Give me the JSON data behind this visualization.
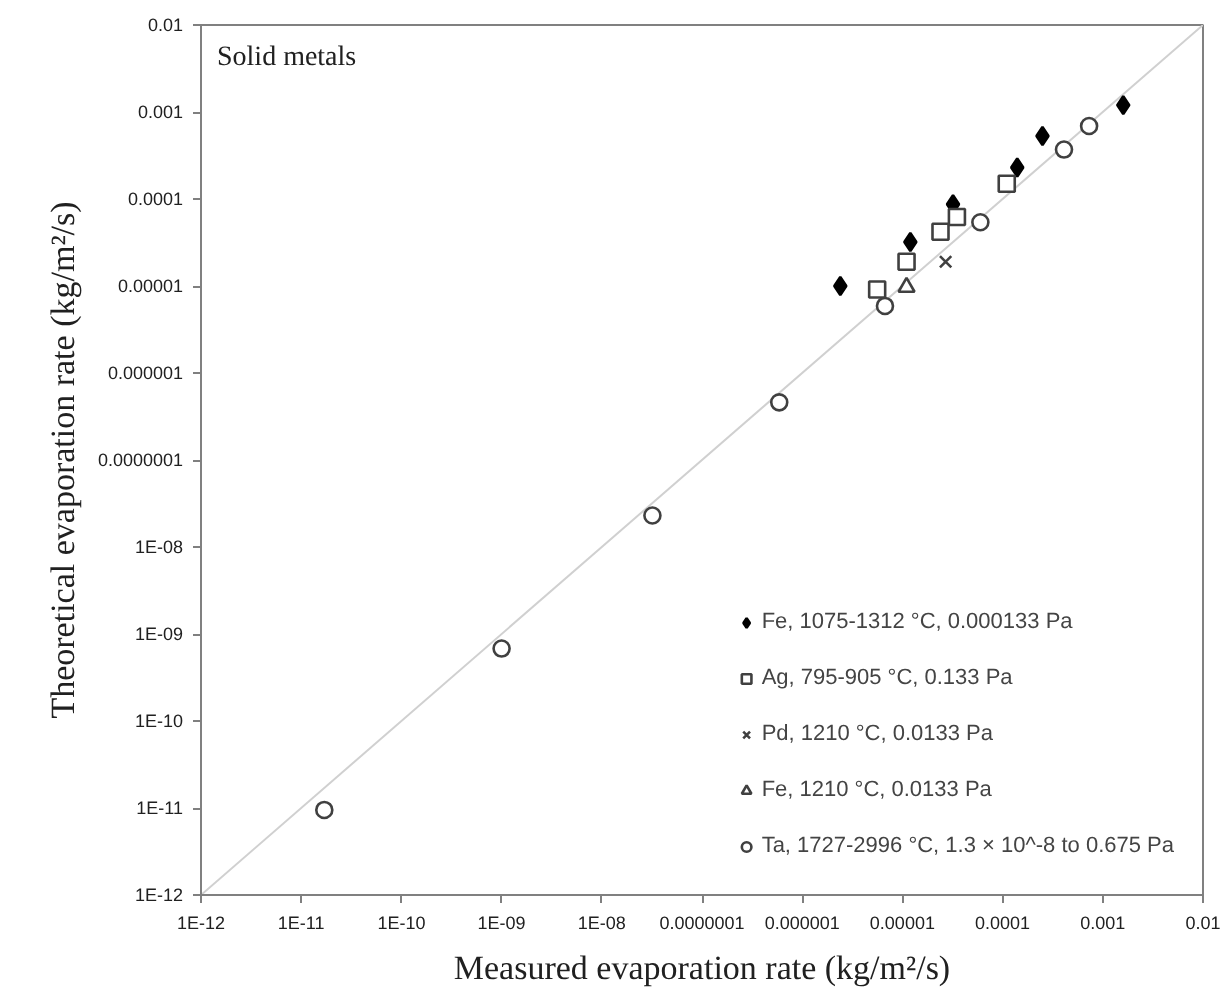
{
  "chart_data": {
    "type": "scatter",
    "xlabel": "Measured evaporation rate (kg/m²/s)",
    "ylabel": "Theoretical evaporation rate (kg/m²/s)",
    "annotations": [
      "Solid metals"
    ],
    "log": "xy",
    "grid": false,
    "legend": "bottom right",
    "xlim": [
      1e-12,
      0.01
    ],
    "ylim": [
      1e-12,
      0.01
    ],
    "xticks": [
      {
        "value": 1e-12,
        "label": "1E-12"
      },
      {
        "value": 1e-11,
        "label": "1E-11"
      },
      {
        "value": 1e-10,
        "label": "1E-10"
      },
      {
        "value": 1e-09,
        "label": "1E-09"
      },
      {
        "value": 1e-08,
        "label": "1E-08"
      },
      {
        "value": 1e-07,
        "label": "0.0000001"
      },
      {
        "value": 1e-06,
        "label": "0.000001"
      },
      {
        "value": 1e-05,
        "label": "0.00001"
      },
      {
        "value": 0.0001,
        "label": "0.0001"
      },
      {
        "value": 0.001,
        "label": "0.001"
      },
      {
        "value": 0.01,
        "label": "0.01"
      }
    ],
    "yticks": [
      {
        "value": 1e-12,
        "label": "1E-12"
      },
      {
        "value": 1e-11,
        "label": "1E-11"
      },
      {
        "value": 1e-10,
        "label": "1E-10"
      },
      {
        "value": 1e-09,
        "label": "1E-09"
      },
      {
        "value": 1e-08,
        "label": "1E-08"
      },
      {
        "value": 1e-07,
        "label": "0.0000001"
      },
      {
        "value": 1e-06,
        "label": "0.000001"
      },
      {
        "value": 1e-05,
        "label": "0.00001"
      },
      {
        "value": 0.0001,
        "label": "0.0001"
      },
      {
        "value": 0.001,
        "label": "0.001"
      },
      {
        "value": 0.01,
        "label": "0.01"
      }
    ],
    "series": [
      {
        "type": "line",
        "color": "#d0d0d0",
        "x": [
          1e-12,
          0.01
        ],
        "values": [
          1e-12,
          0.01
        ]
      },
      {
        "name": "Fe, 1075-1312 °C, 0.000133 Pa",
        "color": "#000000",
        "marker": "diamond",
        "x": [
          2.4e-06,
          1.2e-05,
          3.2e-05,
          0.00014,
          0.00025,
          0.0016
        ],
        "values": [
          1e-05,
          3.2e-05,
          8.7e-05,
          0.00023,
          0.00053,
          0.0012
        ]
      },
      {
        "name": "Ag, 795-905 °C, 0.133 Pa",
        "color": "#404040",
        "marker": "square",
        "x": [
          5.6e-06,
          1.1e-05,
          2.4e-05,
          3.5e-05,
          0.00011
        ],
        "values": [
          9.1e-06,
          1.9e-05,
          4.2e-05,
          6.2e-05,
          0.00015
        ]
      },
      {
        "name": "Pd, 1210 °C, 0.0133 Pa",
        "color": "#404040",
        "marker": "cross",
        "x": [
          2.7e-05
        ],
        "values": [
          1.9e-05
        ]
      },
      {
        "name": "Fe, 1210 °C, 0.0133 Pa",
        "color": "#404040",
        "marker": "triangle",
        "x": [
          1.1e-05
        ],
        "values": [
          9.7e-06
        ]
      },
      {
        "name": "Ta, 1727-2996 °C, 1.3 × 10^-8 to 0.675 Pa",
        "color": "#404040",
        "marker": "circle",
        "x": [
          1.7e-11,
          1e-09,
          3.2e-08,
          5.9e-07,
          6.7e-06,
          6e-05,
          0.00041,
          0.00073
        ],
        "values": [
          9.5e-12,
          6.8e-10,
          2.3e-08,
          4.6e-07,
          5.9e-06,
          5.4e-05,
          0.00037,
          0.00069
        ]
      }
    ]
  }
}
